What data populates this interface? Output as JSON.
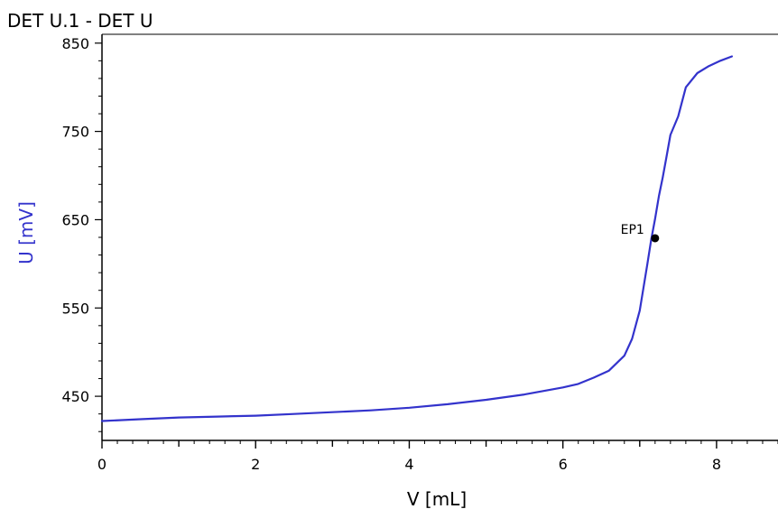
{
  "chart_data": {
    "type": "line",
    "title": "DET U.1 - DET U",
    "xlabel": "V [mL]",
    "ylabel": "U [mV]",
    "xlim": [
      0,
      8.8
    ],
    "ylim": [
      400,
      860
    ],
    "x_ticks": [
      0,
      2,
      4,
      6,
      8
    ],
    "x_tick_labels": [
      "0",
      "2",
      "4",
      "6",
      "8"
    ],
    "y_ticks": [
      450,
      550,
      650,
      750,
      850
    ],
    "y_tick_labels": [
      "450",
      "550",
      "650",
      "750",
      "850"
    ],
    "grid": false,
    "series": [
      {
        "color": "#3333cc",
        "x": [
          0,
          0.5,
          1.0,
          1.5,
          2.0,
          2.5,
          3.0,
          3.5,
          4.0,
          4.5,
          5.0,
          5.5,
          6.0,
          6.2,
          6.4,
          6.6,
          6.8,
          6.9,
          7.0,
          7.1,
          7.15,
          7.2,
          7.25,
          7.3,
          7.35,
          7.4,
          7.5,
          7.6,
          7.75,
          7.9,
          8.05,
          8.2
        ],
        "y": [
          422,
          424,
          426,
          427,
          428,
          430,
          432,
          434,
          437,
          441,
          446,
          452,
          460,
          464,
          471,
          479,
          496,
          515,
          547,
          600,
          628,
          651,
          677,
          698,
          722,
          746,
          767,
          800,
          816,
          824,
          830,
          835
        ]
      }
    ],
    "annotations": [
      {
        "text": "EP1",
        "x": 7.2,
        "y": 629
      }
    ],
    "colors": {
      "curve": "#3333cc",
      "ylabel": "#3333cc",
      "axis": "#000000",
      "point": "#000000"
    }
  }
}
